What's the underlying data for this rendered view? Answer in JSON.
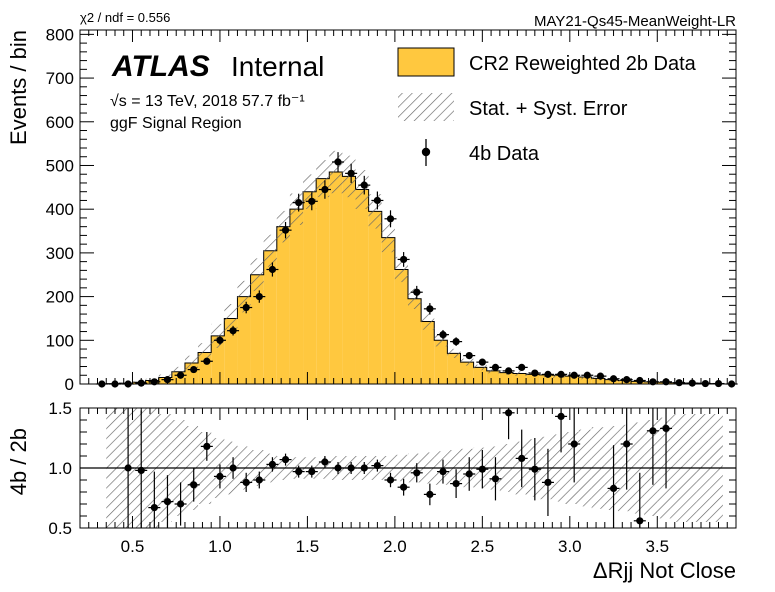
{
  "header": {
    "chi2_label": "χ2 / ndf = 0.556",
    "tag": "MAY21-Qs45-MeanWeight-LR"
  },
  "atlas": {
    "brand": "ATLAS",
    "status": "Internal",
    "energy_line": "√s = 13 TeV, 2018 57.7 fb⁻¹",
    "region": "ggF Signal Region"
  },
  "legend": {
    "items": [
      {
        "label": "CR2 Reweighted 2b Data",
        "kind": "fill",
        "color": "#FFC83F"
      },
      {
        "label": "Stat. + Syst. Error",
        "kind": "hatch",
        "color": "#666666"
      },
      {
        "label": "4b Data",
        "kind": "marker",
        "color": "#000000"
      }
    ]
  },
  "chart_data": [
    {
      "type": "bar",
      "subtype": "histogram",
      "ylabel": "Events / bin",
      "xlim": [
        0.2,
        3.95
      ],
      "ylim": [
        0,
        810
      ],
      "yticks": [
        0,
        100,
        200,
        300,
        400,
        500,
        600,
        700,
        800
      ],
      "bin_width": 0.075,
      "bin_low_edges": [
        0.35,
        0.425,
        0.5,
        0.575,
        0.65,
        0.725,
        0.8,
        0.875,
        0.95,
        1.025,
        1.1,
        1.175,
        1.25,
        1.325,
        1.4,
        1.475,
        1.55,
        1.625,
        1.7,
        1.775,
        1.85,
        1.925,
        2.0,
        2.075,
        2.15,
        2.225,
        2.3,
        2.375,
        2.45,
        2.525,
        2.6,
        2.675,
        2.75,
        2.825,
        2.9,
        2.975,
        3.05,
        3.125,
        3.2,
        3.275,
        3.35,
        3.425,
        3.5,
        3.575,
        3.65,
        3.725,
        3.8
      ],
      "series": [
        {
          "name": "CR2 Reweighted 2b Data",
          "style": "filled-step",
          "color": "#FFC83F",
          "values": [
            1,
            2,
            4,
            8,
            15,
            28,
            48,
            72,
            110,
            150,
            200,
            250,
            305,
            360,
            400,
            440,
            470,
            485,
            475,
            445,
            395,
            335,
            262,
            195,
            143,
            100,
            70,
            50,
            38,
            30,
            26,
            24,
            22,
            21,
            20,
            18,
            16,
            13,
            10,
            8,
            6,
            5,
            4,
            3,
            2,
            2,
            1
          ]
        },
        {
          "name": "Stat. + Syst. Error",
          "style": "hatched-band",
          "color": "#666666",
          "relative_error": [
            0.6,
            0.6,
            0.55,
            0.5,
            0.45,
            0.4,
            0.35,
            0.3,
            0.25,
            0.22,
            0.18,
            0.15,
            0.12,
            0.1,
            0.09,
            0.09,
            0.09,
            0.1,
            0.1,
            0.1,
            0.1,
            0.1,
            0.11,
            0.12,
            0.13,
            0.14,
            0.15,
            0.16,
            0.17,
            0.18,
            0.2,
            0.22,
            0.24,
            0.26,
            0.28,
            0.3,
            0.32,
            0.34,
            0.35,
            0.36,
            0.38,
            0.4,
            0.42,
            0.45,
            0.45,
            0.45,
            0.45
          ]
        },
        {
          "name": "4b Data",
          "style": "markers",
          "color": "#000000",
          "x": [
            0.325,
            0.4,
            0.475,
            0.55,
            0.625,
            0.7,
            0.775,
            0.85,
            0.925,
            1.0,
            1.075,
            1.15,
            1.225,
            1.3,
            1.375,
            1.45,
            1.525,
            1.6,
            1.675,
            1.75,
            1.825,
            1.9,
            1.975,
            2.05,
            2.125,
            2.2,
            2.275,
            2.35,
            2.425,
            2.5,
            2.575,
            2.65,
            2.725,
            2.8,
            2.875,
            2.95,
            3.025,
            3.1,
            3.175,
            3.25,
            3.325,
            3.4,
            3.475,
            3.55,
            3.625,
            3.7,
            3.775,
            3.85,
            3.925
          ],
          "y": [
            0,
            0,
            0,
            2,
            5,
            10,
            20,
            33,
            52,
            100,
            122,
            175,
            200,
            262,
            352,
            415,
            418,
            445,
            508,
            482,
            455,
            420,
            378,
            285,
            210,
            172,
            113,
            97,
            65,
            50,
            38,
            30,
            38,
            25,
            22,
            22,
            20,
            20,
            18,
            12,
            10,
            8,
            5,
            5,
            3,
            2,
            1,
            1,
            0
          ]
        }
      ]
    },
    {
      "type": "scatter",
      "subtype": "ratio",
      "ylabel": "4b / 2b",
      "xlabel": "ΔRjj Not Close",
      "xlim": [
        0.2,
        3.95
      ],
      "ylim": [
        0.5,
        1.5
      ],
      "yticks": [
        0.5,
        1.0,
        1.5
      ],
      "xticks": [
        0.5,
        1.0,
        1.5,
        2.0,
        2.5,
        3.0,
        3.5
      ],
      "xtick_labels": [
        "0.5",
        "1.0",
        "1.5",
        "2.0",
        "2.5",
        "3.0",
        "3.5"
      ],
      "ytick_labels": [
        "0.5",
        "1.0",
        "1.5"
      ],
      "reference_line": 1.0,
      "x": [
        0.475,
        0.55,
        0.625,
        0.7,
        0.775,
        0.85,
        0.925,
        1.0,
        1.075,
        1.15,
        1.225,
        1.3,
        1.375,
        1.45,
        1.525,
        1.6,
        1.675,
        1.75,
        1.825,
        1.9,
        1.975,
        2.05,
        2.125,
        2.2,
        2.275,
        2.35,
        2.425,
        2.5,
        2.575,
        2.65,
        2.725,
        2.8,
        2.875,
        2.95,
        3.025,
        3.25,
        3.325,
        3.4,
        3.475,
        3.55
      ],
      "y": [
        1.0,
        0.98,
        0.67,
        0.72,
        0.7,
        0.86,
        1.18,
        0.93,
        1.0,
        0.88,
        0.9,
        1.03,
        1.07,
        0.97,
        0.97,
        1.05,
        1.0,
        1.0,
        1.0,
        1.02,
        0.9,
        0.84,
        0.96,
        0.78,
        0.97,
        0.87,
        0.95,
        0.99,
        0.91,
        1.46,
        1.08,
        0.99,
        0.88,
        1.43,
        1.2,
        0.83,
        1.2,
        0.56,
        1.31,
        1.33
      ],
      "yerr": [
        0.9,
        0.5,
        0.3,
        0.22,
        0.18,
        0.14,
        0.12,
        0.1,
        0.09,
        0.08,
        0.07,
        0.06,
        0.05,
        0.05,
        0.05,
        0.05,
        0.05,
        0.05,
        0.05,
        0.05,
        0.06,
        0.07,
        0.08,
        0.09,
        0.1,
        0.12,
        0.14,
        0.16,
        0.18,
        0.22,
        0.24,
        0.26,
        0.28,
        0.3,
        0.32,
        0.36,
        0.38,
        0.4,
        0.45,
        0.5
      ]
    }
  ]
}
